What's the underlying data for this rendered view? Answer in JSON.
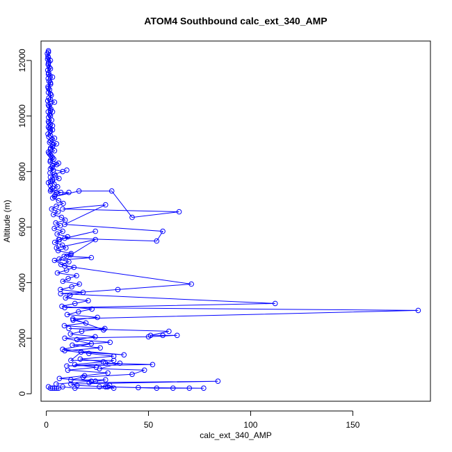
{
  "chart_data": {
    "type": "line",
    "title": "ATOM4 Southbound calc_ext_340_AMP",
    "xlabel": "calc_ext_340_AMP",
    "ylabel": "Altitude (m)",
    "xlim": [
      0,
      190
    ],
    "ylim": [
      0,
      12400
    ],
    "xticks": [
      0,
      50,
      100,
      150
    ],
    "yticks": [
      0,
      2000,
      4000,
      6000,
      8000,
      10000,
      12000
    ],
    "xtick_labels": [
      "0",
      "50",
      "100",
      "150"
    ],
    "ytick_labels": [
      "0",
      "2000",
      "4000",
      "6000",
      "8000",
      "10000",
      "12000"
    ],
    "grid": false,
    "color": "#0000ff",
    "markers": "open-circle",
    "series": [
      {
        "x": [
          1,
          1,
          1,
          2,
          1,
          2,
          1,
          3,
          2,
          1,
          2,
          2,
          4,
          1,
          2,
          3,
          2,
          1,
          2,
          1,
          2,
          3,
          2,
          4,
          2,
          5,
          3,
          2,
          1,
          2,
          3,
          2,
          6,
          3,
          2,
          8,
          10,
          4,
          2,
          3,
          2,
          1,
          2,
          3,
          2,
          5,
          11,
          4,
          16,
          32,
          42,
          65,
          8,
          29,
          9,
          57,
          54,
          9,
          24,
          6,
          5,
          24,
          12,
          10,
          22,
          4,
          9,
          71,
          35,
          7,
          112,
          9,
          182,
          13,
          28,
          11,
          60,
          51,
          57,
          64,
          50,
          9,
          22,
          8,
          38,
          17,
          12,
          33,
          29,
          52,
          10,
          36,
          26,
          48,
          42,
          18,
          12,
          29,
          24,
          21,
          84,
          12,
          15,
          29,
          54,
          62,
          70,
          77,
          45,
          30,
          26,
          31,
          33,
          14,
          8,
          6,
          5,
          4,
          3,
          2,
          1
        ],
        "y": [
          12350,
          12300,
          12100,
          12000,
          11900,
          11700,
          11500,
          11400,
          11200,
          11000,
          10800,
          10600,
          10500,
          10400,
          10200,
          10150,
          10000,
          9800,
          9700,
          9600,
          9550,
          9500,
          9300,
          9200,
          9100,
          9000,
          8900,
          8800,
          8700,
          8600,
          8500,
          8400,
          8300,
          8200,
          8100,
          8000,
          8050,
          7900,
          7800,
          7700,
          7650,
          7600,
          7500,
          7400,
          7300,
          7250,
          7250,
          7100,
          7300,
          7300,
          6350,
          6550,
          6650,
          6800,
          6100,
          5850,
          5500,
          5600,
          5850,
          5550,
          5250,
          5550,
          5000,
          4950,
          4900,
          4800,
          4600,
          3950,
          3750,
          3600,
          3250,
          3100,
          3000,
          2700,
          2300,
          2350,
          2250,
          2100,
          2100,
          2100,
          2050,
          2000,
          1800,
          1600,
          1400,
          1500,
          1200,
          1200,
          1100,
          1050,
          1000,
          1100,
          900,
          850,
          700,
          600,
          500,
          500,
          450,
          400,
          450,
          350,
          300,
          250,
          200,
          200,
          200,
          200,
          220,
          250,
          250,
          300,
          200,
          200,
          250,
          200,
          200,
          200,
          200,
          200,
          250
        ]
      },
      {
        "x": [
          0.5,
          0.8,
          0.6,
          1.2,
          0.9,
          1.5,
          0.7,
          1.1,
          1.8,
          0.9,
          1.3,
          2.1,
          0.8,
          1.6,
          1.0,
          2.4,
          1.2,
          0.7,
          1.9,
          1.4,
          2.2,
          0.9,
          1.7,
          1.1,
          2.6,
          1.3,
          3.0,
          1.5,
          2.0,
          0.8,
          1.2,
          2.8,
          1.6,
          3.3,
          2.1,
          4.0,
          1.4,
          2.5,
          3.6,
          1.9,
          5.1,
          2.7,
          3.4,
          1.8,
          4.4,
          6.2,
          2.9,
          3.8,
          5.5,
          2.3,
          7.1,
          4.2,
          3.1,
          6.0,
          8.3,
          4.9,
          2.6,
          5.7,
          3.5,
          7.4,
          9.2,
          4.6,
          6.8,
          3.9,
          8.0,
          5.3,
          10.4,
          6.5,
          4.1,
          7.8,
          9.6,
          5.8,
          12.1,
          8.7,
          6.3,
          11.0,
          7.2,
          13.5,
          9.9,
          5.4,
          14.8,
          10.7,
          8.1,
          16.2,
          12.4,
          6.9,
          18.0,
          11.6,
          9.4,
          20.5,
          14.0,
          7.6,
          22.3,
          15.7,
          10.2,
          25.0,
          13.1,
          19.4,
          8.8,
          28.6,
          17.3,
          11.8,
          23.9,
          15.0,
          31.2,
          12.7,
          26.4,
          9.0,
          20.8,
          33.0,
          16.6,
          27.9,
          13.9,
          24.5,
          10.5,
          30.1,
          18.7,
          6.4,
          22.0,
          4.8
        ],
        "y": [
          12250,
          12150,
          12050,
          11950,
          11850,
          11750,
          11650,
          11550,
          11450,
          11350,
          11250,
          11150,
          11050,
          10950,
          10850,
          10750,
          10650,
          10550,
          10450,
          10350,
          10250,
          10150,
          10050,
          9950,
          9850,
          9750,
          9650,
          9550,
          9450,
          9350,
          9250,
          9150,
          9050,
          8950,
          8850,
          8750,
          8650,
          8550,
          8450,
          8350,
          8250,
          8150,
          8050,
          7950,
          7850,
          7750,
          7650,
          7550,
          7450,
          7350,
          7250,
          7150,
          7050,
          6950,
          6850,
          6750,
          6650,
          6550,
          6450,
          6350,
          6250,
          6150,
          6050,
          5950,
          5850,
          5750,
          5650,
          5550,
          5450,
          5350,
          5250,
          5150,
          5050,
          4950,
          4850,
          4750,
          4650,
          4550,
          4450,
          4350,
          4250,
          4150,
          4050,
          3950,
          3850,
          3750,
          3650,
          3550,
          3450,
          3350,
          3250,
          3150,
          3050,
          2950,
          2850,
          2750,
          2650,
          2550,
          2450,
          2350,
          2250,
          2150,
          2050,
          1950,
          1850,
          1750,
          1650,
          1550,
          1450,
          1350,
          1250,
          1150,
          1050,
          950,
          850,
          750,
          650,
          550,
          450,
          350
        ]
      }
    ]
  }
}
